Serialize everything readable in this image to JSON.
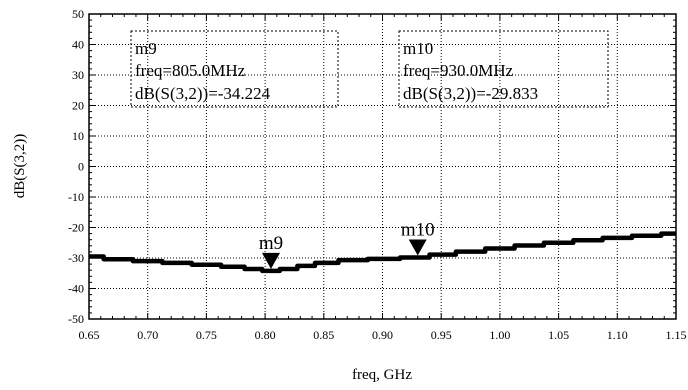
{
  "chart_data": {
    "type": "line",
    "xlabel": "freq, GHz",
    "ylabel": "dB(S(3,2))",
    "xlim": [
      0.65,
      1.15
    ],
    "ylim": [
      -50,
      50
    ],
    "x_ticks": [
      "0.65",
      "0.70",
      "0.75",
      "0.80",
      "0.85",
      "0.90",
      "0.95",
      "1.00",
      "1.05",
      "1.10",
      "1.15"
    ],
    "y_ticks": [
      "50",
      "40",
      "30",
      "20",
      "10",
      "0",
      "-10",
      "-20",
      "-30",
      "-40",
      "-50"
    ],
    "x_tick_values": [
      0.65,
      0.7,
      0.75,
      0.8,
      0.85,
      0.9,
      0.95,
      1.0,
      1.05,
      1.1,
      1.15
    ],
    "y_tick_values": [
      50,
      40,
      30,
      20,
      10,
      0,
      -10,
      -20,
      -30,
      -40,
      -50
    ],
    "series": [
      {
        "x": [
          0.65,
          0.675,
          0.7,
          0.725,
          0.75,
          0.775,
          0.79,
          0.805,
          0.82,
          0.835,
          0.85,
          0.875,
          0.9,
          0.93,
          0.95,
          0.975,
          1.0,
          1.025,
          1.05,
          1.075,
          1.1,
          1.125,
          1.15
        ],
        "y": [
          -29.5,
          -30.4,
          -31.0,
          -31.6,
          -32.2,
          -32.9,
          -33.6,
          -34.224,
          -33.6,
          -32.6,
          -31.6,
          -30.7,
          -30.3,
          -29.833,
          -28.9,
          -27.9,
          -26.9,
          -25.9,
          -25.0,
          -24.2,
          -23.4,
          -22.7,
          -22.0
        ]
      }
    ],
    "markers": [
      {
        "name": "m9",
        "x": 0.805,
        "y": -34.224,
        "line1": "m9",
        "line2": "freq=805.0MHz",
        "line3": "dB(S(3,2))=-34.224"
      },
      {
        "name": "m10",
        "x": 0.93,
        "y": -29.833,
        "line1": "m10",
        "line2": "freq=930.0MHz",
        "line3": "dB(S(3,2))=-29.833"
      }
    ]
  }
}
